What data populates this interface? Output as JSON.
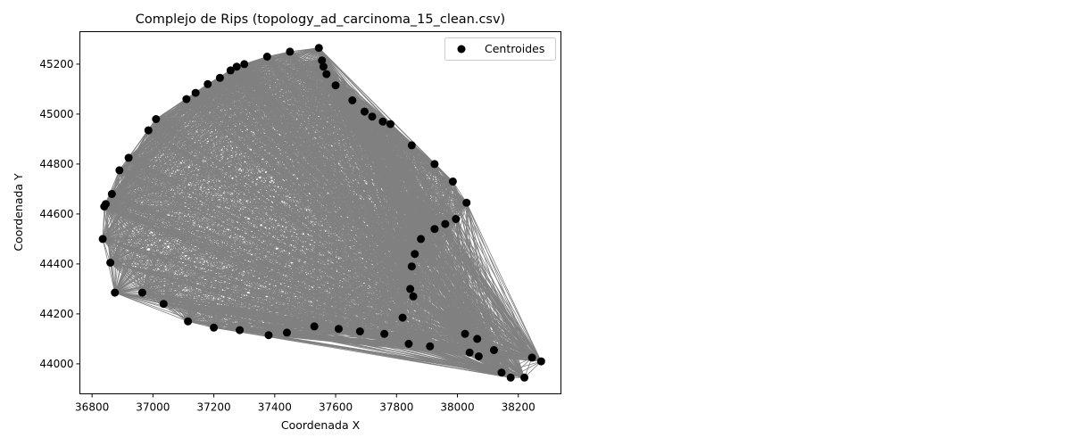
{
  "chart_data": {
    "type": "scatter",
    "title": "Complejo de Rips (topology_ad_carcinoma_15_clean.csv)",
    "xlabel": "Coordenada X",
    "ylabel": "Coordenada Y",
    "xlim": [
      36760,
      38340
    ],
    "ylim": [
      43880,
      45330
    ],
    "xticks": [
      36800,
      37000,
      37200,
      37400,
      37600,
      37800,
      38000,
      38200
    ],
    "yticks": [
      44000,
      44200,
      44400,
      44600,
      44800,
      45000,
      45200
    ],
    "grid": false,
    "legend": {
      "position": "top-right",
      "entries": [
        "Centroides"
      ]
    },
    "colors": {
      "points": "#000000",
      "edges": "#808080"
    },
    "series": [
      {
        "name": "Centroides",
        "points": [
          [
            37545,
            45265
          ],
          [
            37450,
            45250
          ],
          [
            37375,
            45230
          ],
          [
            37300,
            45200
          ],
          [
            37275,
            45190
          ],
          [
            37255,
            45175
          ],
          [
            37220,
            45145
          ],
          [
            37180,
            45120
          ],
          [
            37140,
            45085
          ],
          [
            37110,
            45060
          ],
          [
            37010,
            44980
          ],
          [
            36985,
            44935
          ],
          [
            36920,
            44825
          ],
          [
            36890,
            44775
          ],
          [
            36865,
            44680
          ],
          [
            36845,
            44640
          ],
          [
            36840,
            44630
          ],
          [
            36835,
            44500
          ],
          [
            36860,
            44405
          ],
          [
            36875,
            44285
          ],
          [
            36965,
            44285
          ],
          [
            37035,
            44240
          ],
          [
            37115,
            44170
          ],
          [
            37200,
            44145
          ],
          [
            37285,
            44135
          ],
          [
            37380,
            44115
          ],
          [
            37440,
            44125
          ],
          [
            37530,
            44150
          ],
          [
            37610,
            44140
          ],
          [
            37680,
            44130
          ],
          [
            37760,
            44120
          ],
          [
            37840,
            44080
          ],
          [
            37910,
            44070
          ],
          [
            38025,
            44120
          ],
          [
            38065,
            44100
          ],
          [
            38040,
            44045
          ],
          [
            38070,
            44030
          ],
          [
            38120,
            44055
          ],
          [
            38145,
            43965
          ],
          [
            38175,
            43945
          ],
          [
            38220,
            43945
          ],
          [
            38245,
            44025
          ],
          [
            38275,
            44010
          ],
          [
            38030,
            44645
          ],
          [
            37995,
            44580
          ],
          [
            37985,
            44730
          ],
          [
            37925,
            44800
          ],
          [
            37850,
            44875
          ],
          [
            37780,
            44960
          ],
          [
            37755,
            44970
          ],
          [
            37720,
            44990
          ],
          [
            37695,
            45010
          ],
          [
            37655,
            45055
          ],
          [
            37600,
            45115
          ],
          [
            37570,
            45160
          ],
          [
            37560,
            45190
          ],
          [
            37555,
            45215
          ],
          [
            37925,
            44540
          ],
          [
            37880,
            44500
          ],
          [
            37860,
            44440
          ],
          [
            37850,
            44390
          ],
          [
            37845,
            44300
          ],
          [
            37855,
            44270
          ],
          [
            37820,
            44185
          ],
          [
            37960,
            44560
          ]
        ]
      }
    ]
  }
}
